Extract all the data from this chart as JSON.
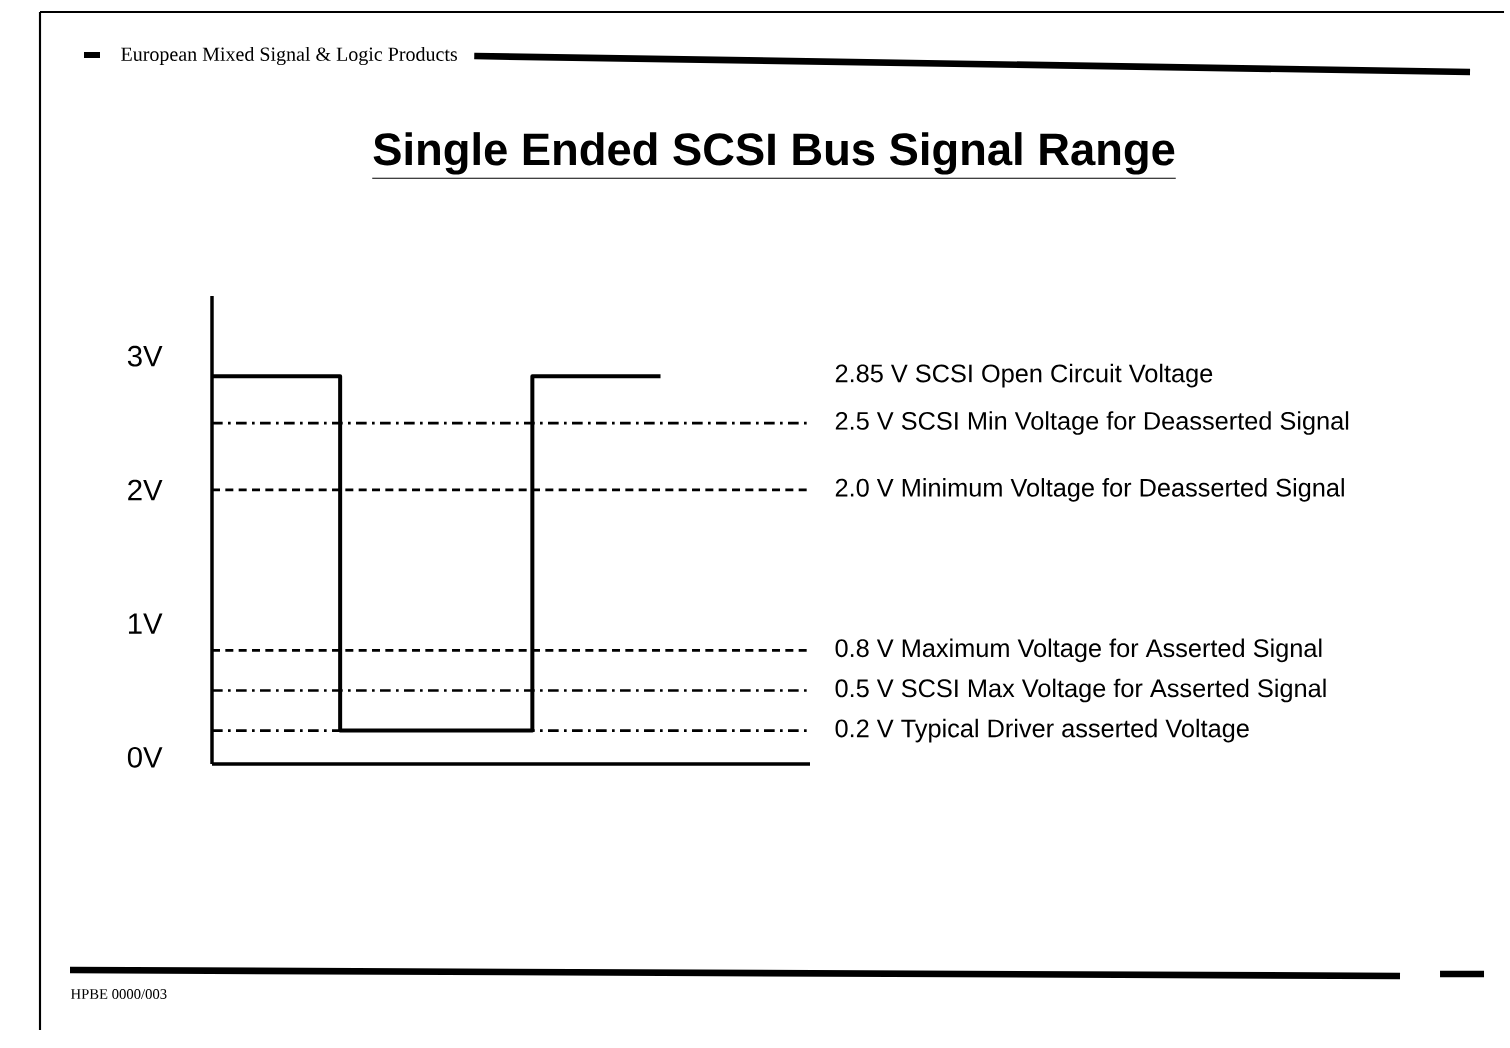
{
  "chart_data": {
    "type": "step",
    "title": "Single Ended SCSI Bus Signal Range",
    "annotations": [
      "European Mixed Signal & Logic Products",
      "HPBE 0000/003",
      "2.85 V SCSI Open Circuit Voltage"
    ],
    "categories": [
      null,
      null,
      null,
      null,
      null,
      null,
      null,
      null
    ],
    "series": [
      {
        "color": "#000000",
        "values": [
          2.85,
          2.85,
          0.2,
          0.2,
          0.2,
          2.85,
          2.85,
          2.85
        ]
      }
    ],
    "ylim": [
      -0.05,
      3.45
    ],
    "yticks": [
      {
        "value": 0,
        "label": "0V"
      },
      {
        "value": 1,
        "label": "1V"
      },
      {
        "value": 2,
        "label": "2V"
      },
      {
        "value": 3,
        "label": "3V"
      }
    ],
    "tick_labels": "y",
    "ref_lines": [
      {
        "axis": "y",
        "value": 2.5,
        "label": "2.5 V SCSI Min Voltage for Deasserted Signal",
        "color": "#000000",
        "line_style": "dashdot"
      },
      {
        "axis": "y",
        "value": 2.0,
        "label": "2.0 V Minimum Voltage for Deasserted Signal",
        "color": "#000000",
        "line_style": "dashed"
      },
      {
        "axis": "y",
        "value": 0.8,
        "label": "0.8 V Maximum Voltage for Asserted Signal",
        "color": "#000000",
        "line_style": "dashed"
      },
      {
        "axis": "y",
        "value": 0.5,
        "label": "0.5 V SCSI Max Voltage for Asserted Signal",
        "color": "#000000",
        "line_style": "dashdot"
      },
      {
        "axis": "y",
        "value": 0.2,
        "label": "0.2 V Typical Driver asserted Voltage",
        "color": "#000000",
        "line_style": "dashdot"
      }
    ]
  }
}
